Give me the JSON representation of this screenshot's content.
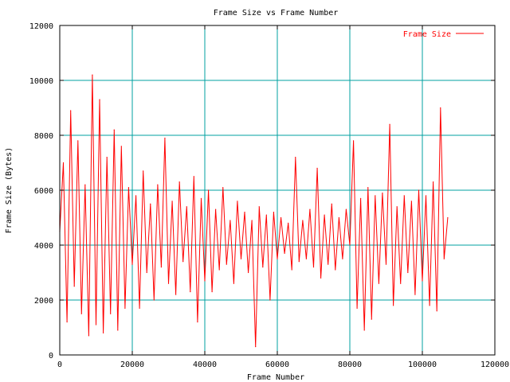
{
  "chart_data": {
    "type": "line",
    "title": "Frame Size vs Frame Number",
    "xlabel": "Frame Number",
    "ylabel": "Frame Size (Bytes)",
    "xlim": [
      0,
      120000
    ],
    "ylim": [
      0,
      12000
    ],
    "xticks": [
      0,
      20000,
      40000,
      60000,
      80000,
      100000,
      120000
    ],
    "yticks": [
      0,
      2000,
      4000,
      6000,
      8000,
      10000,
      12000
    ],
    "x_tick_labels": [
      "0",
      "20000",
      "40000",
      "60000",
      "80000",
      "100000",
      "120000"
    ],
    "y_tick_labels": [
      "0",
      "2000",
      "4000",
      "6000",
      "8000",
      "10000",
      "12000"
    ],
    "grid": true,
    "legend_position": "top-right",
    "series": [
      {
        "name": "Frame Size",
        "color": "#ff0000",
        "x": [
          0,
          1000,
          2000,
          3000,
          4000,
          5000,
          6000,
          7000,
          8000,
          9000,
          10000,
          11000,
          12000,
          13000,
          14000,
          15000,
          16000,
          17000,
          18000,
          19000,
          20000,
          21000,
          22000,
          23000,
          24000,
          25000,
          26000,
          27000,
          28000,
          29000,
          30000,
          31000,
          32000,
          33000,
          34000,
          35000,
          36000,
          37000,
          38000,
          39000,
          40000,
          41000,
          42000,
          43000,
          44000,
          45000,
          46000,
          47000,
          48000,
          49000,
          50000,
          51000,
          52000,
          53000,
          54000,
          55000,
          56000,
          57000,
          58000,
          59000,
          60000,
          61000,
          62000,
          63000,
          64000,
          65000,
          66000,
          67000,
          68000,
          69000,
          70000,
          71000,
          72000,
          73000,
          74000,
          75000,
          76000,
          77000,
          78000,
          79000,
          80000,
          81000,
          82000,
          83000,
          84000,
          85000,
          86000,
          87000,
          88000,
          89000,
          90000,
          91000,
          92000,
          93000,
          94000,
          95000,
          96000,
          97000,
          98000,
          99000,
          100000,
          101000,
          102000,
          103000,
          104000,
          105000,
          106000,
          107000
        ],
        "y": [
          4500,
          7000,
          1200,
          8900,
          2500,
          7800,
          1500,
          6200,
          700,
          10200,
          1100,
          9300,
          800,
          7200,
          1500,
          8200,
          900,
          7600,
          1700,
          6100,
          3300,
          5800,
          1700,
          6700,
          3000,
          5500,
          2000,
          6200,
          3200,
          7900,
          2600,
          5600,
          2200,
          6300,
          3400,
          5400,
          2300,
          6500,
          1200,
          5700,
          2700,
          6000,
          2300,
          5300,
          3100,
          6100,
          3300,
          4900,
          2600,
          5600,
          3500,
          5200,
          3000,
          4900,
          300,
          5400,
          3200,
          5100,
          2000,
          5200,
          3500,
          5000,
          3700,
          4800,
          3100,
          7200,
          3400,
          4900,
          3500,
          5300,
          3200,
          6800,
          2800,
          5100,
          3300,
          5500,
          3100,
          5000,
          3500,
          5300,
          4000,
          7800,
          1700,
          5700,
          900,
          6100,
          1300,
          5800,
          2600,
          5900,
          3300,
          8400,
          1800,
          5400,
          2600,
          5800,
          3000,
          5600,
          2200,
          6000,
          2700,
          5800,
          1800,
          6300,
          1600,
          9000,
          3500,
          5000
        ]
      }
    ]
  }
}
